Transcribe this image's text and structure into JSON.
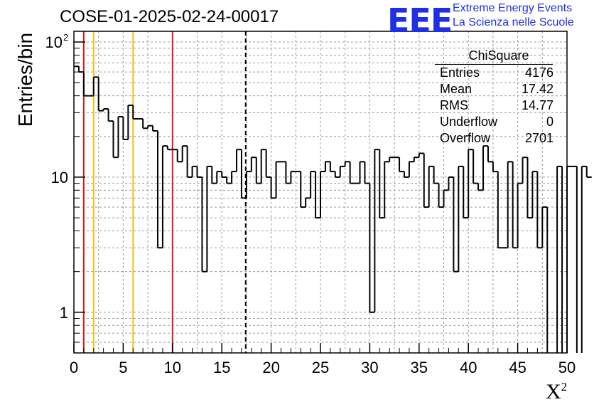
{
  "chart_data": {
    "type": "histogram",
    "title": "COSE-01-2025-02-24-00017",
    "xlabel": "X",
    "xlabel_sup": "2",
    "ylabel": "Entries/bin",
    "xlim": [
      0,
      50
    ],
    "ylim": [
      0.5,
      120
    ],
    "yscale": "log",
    "grid": true,
    "bin_width": 0.5,
    "x_ticks": [
      "0",
      "5",
      "10",
      "15",
      "20",
      "25",
      "30",
      "35",
      "40",
      "45",
      "50"
    ],
    "x_tick_values": [
      0,
      5,
      10,
      15,
      20,
      25,
      30,
      35,
      40,
      45,
      50
    ],
    "y_ticks": [
      {
        "value": 1,
        "label": "1"
      },
      {
        "value": 10,
        "label": "10"
      },
      {
        "value": 100,
        "label": "10",
        "sup": "2"
      }
    ],
    "values": [
      66,
      60,
      40,
      40,
      55,
      31,
      32,
      26,
      14,
      28,
      19,
      34,
      27,
      27,
      23,
      24,
      22,
      3,
      17,
      16,
      16,
      13,
      17,
      10,
      12,
      10,
      2,
      12,
      9,
      11,
      10,
      9,
      11,
      16,
      7,
      11,
      14,
      9,
      16,
      10,
      7,
      13,
      13,
      9,
      11,
      11,
      6,
      7,
      11,
      5,
      11,
      13,
      11,
      10,
      12,
      13,
      9,
      9,
      13,
      9,
      1,
      16,
      5,
      13,
      14,
      14,
      11,
      10,
      13,
      14,
      15,
      6,
      12,
      9,
      6,
      8,
      10,
      2,
      12,
      5,
      16,
      9,
      8,
      17,
      13,
      11,
      3,
      3,
      13,
      3,
      9,
      14,
      5,
      11,
      3,
      6,
      0,
      0,
      12,
      0,
      12,
      12,
      0,
      12,
      10
    ],
    "vlines": [
      {
        "x": 1,
        "color": "#d6191c",
        "style": "solid"
      },
      {
        "x": 2,
        "color": "#f2c014",
        "style": "solid"
      },
      {
        "x": 6,
        "color": "#f2c014",
        "style": "solid"
      },
      {
        "x": 10,
        "color": "#d6191c",
        "style": "solid"
      },
      {
        "x": 17.42,
        "color": "#000000",
        "style": "dashed"
      }
    ]
  },
  "stats": {
    "title": "ChiSquare",
    "rows": [
      {
        "label": "Entries",
        "value": "4176"
      },
      {
        "label": "Mean",
        "value": "17.42"
      },
      {
        "label": "RMS",
        "value": "14.77"
      },
      {
        "label": "Underflow",
        "value": "0"
      },
      {
        "label": "Overflow",
        "value": "2701"
      }
    ]
  },
  "logo": {
    "text": "EEE",
    "line1": "Extreme Energy Events",
    "line2": "La Scienza nelle Scuole",
    "color": "#1e2fe6"
  }
}
